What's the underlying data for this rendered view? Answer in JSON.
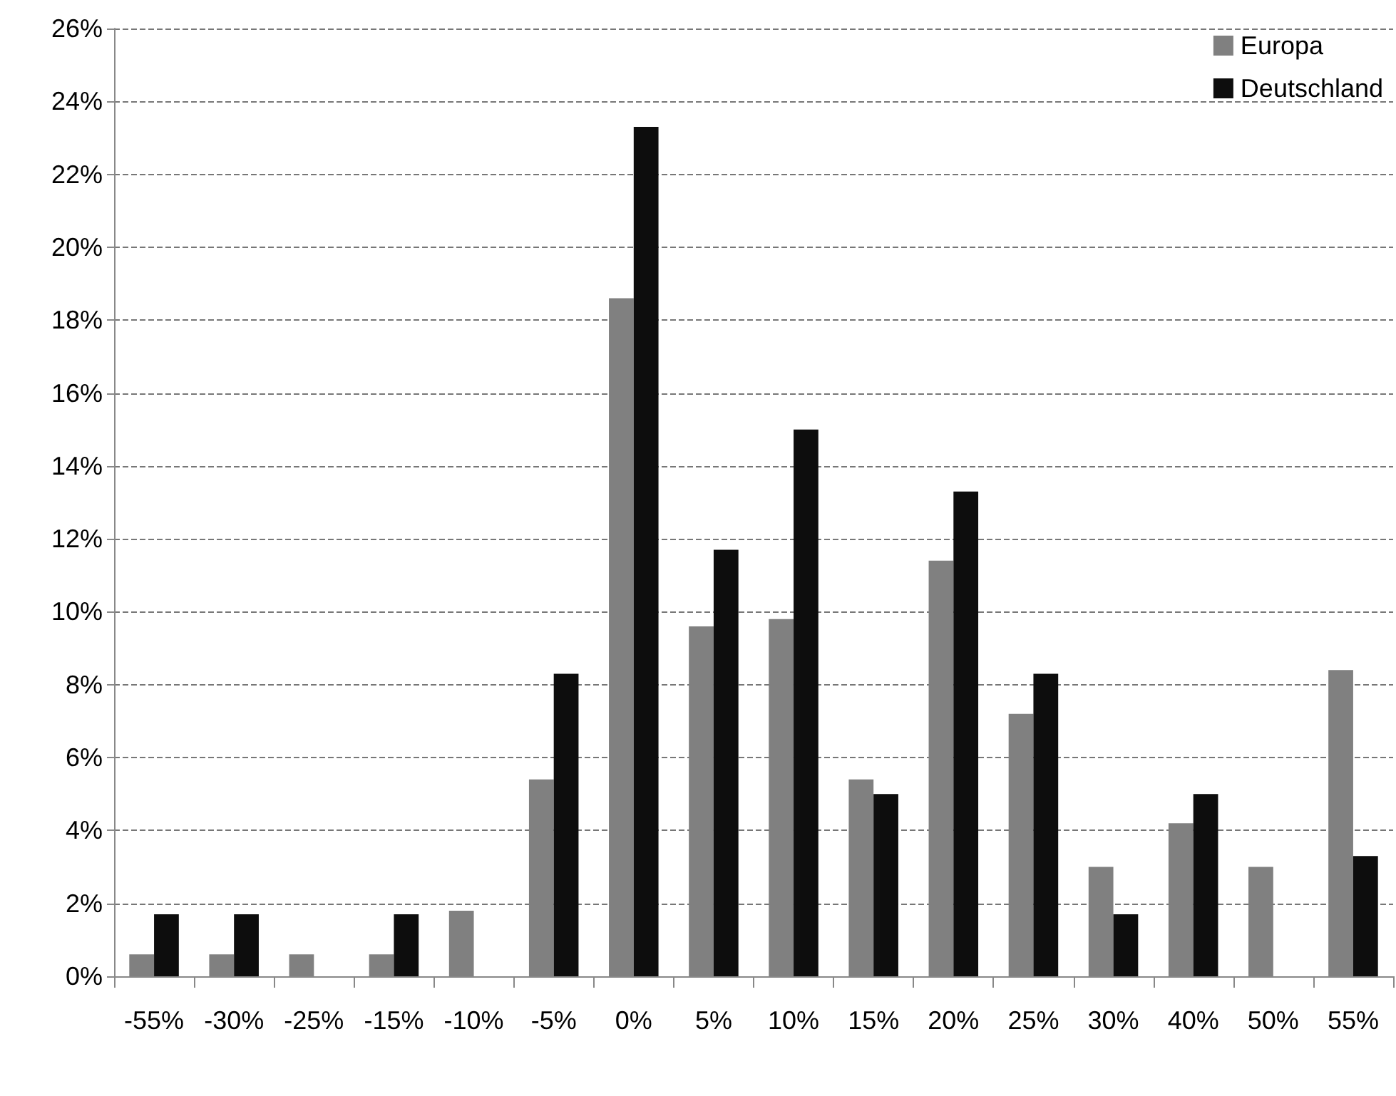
{
  "chart_data": {
    "type": "bar",
    "categories": [
      "-55%",
      "-30%",
      "-25%",
      "-15%",
      "-10%",
      "-5%",
      "0%",
      "5%",
      "10%",
      "15%",
      "20%",
      "25%",
      "30%",
      "40%",
      "50%",
      "55%"
    ],
    "series": [
      {
        "name": "Europa",
        "color": "#808080",
        "values": [
          0.6,
          0.6,
          0.6,
          0.6,
          1.8,
          5.4,
          18.6,
          9.6,
          9.8,
          5.4,
          11.4,
          7.2,
          3.0,
          4.2,
          3.0,
          8.4
        ]
      },
      {
        "name": "Deutschland",
        "color": "#0d0d0d",
        "values": [
          1.7,
          1.7,
          null,
          1.7,
          null,
          8.3,
          23.3,
          11.7,
          15.0,
          5.0,
          13.3,
          8.3,
          1.7,
          5.0,
          null,
          3.3
        ]
      }
    ],
    "ylim": [
      0,
      26
    ],
    "yticks": [
      {
        "value": 0,
        "label": "0%"
      },
      {
        "value": 2,
        "label": "2%"
      },
      {
        "value": 4,
        "label": "4%"
      },
      {
        "value": 6,
        "label": "6%"
      },
      {
        "value": 8,
        "label": "8%"
      },
      {
        "value": 10,
        "label": "10%"
      },
      {
        "value": 12,
        "label": "12%"
      },
      {
        "value": 14,
        "label": "14%"
      },
      {
        "value": 16,
        "label": "16%"
      },
      {
        "value": 18,
        "label": "18%"
      },
      {
        "value": 20,
        "label": "20%"
      },
      {
        "value": 22,
        "label": "22%"
      },
      {
        "value": 24,
        "label": "24%"
      },
      {
        "value": 26,
        "label": "26%"
      }
    ],
    "grid": "y",
    "legend": "top right"
  }
}
